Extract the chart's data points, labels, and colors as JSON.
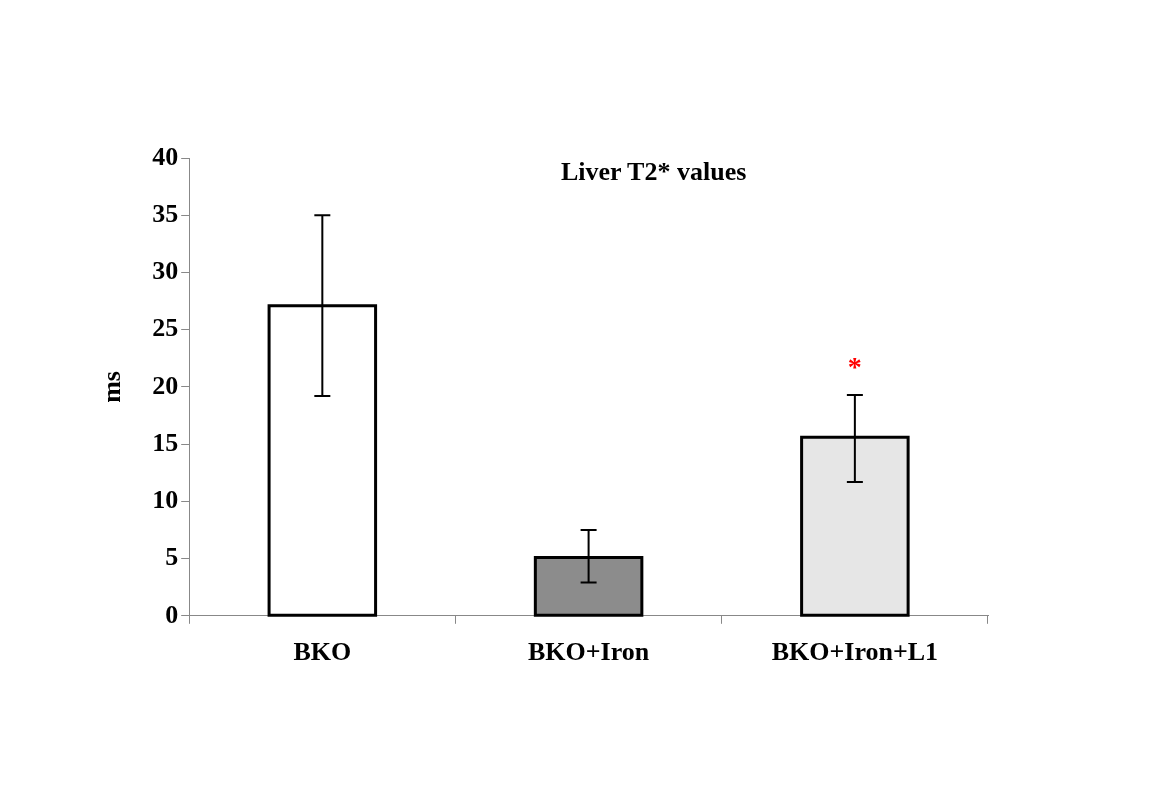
{
  "chart_data": {
    "type": "bar",
    "title": "Liver T2* values",
    "ylabel": "ms",
    "categories": [
      "BKO",
      "BKO+Iron",
      "BKO+Iron+L1"
    ],
    "values": [
      27.1,
      5.1,
      15.6
    ],
    "colors": [
      "#ffffff",
      "#8c8c8c",
      "#e6e6e6"
    ],
    "errors": [
      [
        19.2,
        35.0
      ],
      [
        2.9,
        7.5
      ],
      [
        11.7,
        19.3
      ]
    ],
    "ylim": [
      0,
      40
    ],
    "yticks": [
      0,
      5,
      10,
      15,
      20,
      25,
      30,
      35,
      40
    ],
    "grid": false,
    "legend": false,
    "annotations": [
      "*"
    ]
  }
}
